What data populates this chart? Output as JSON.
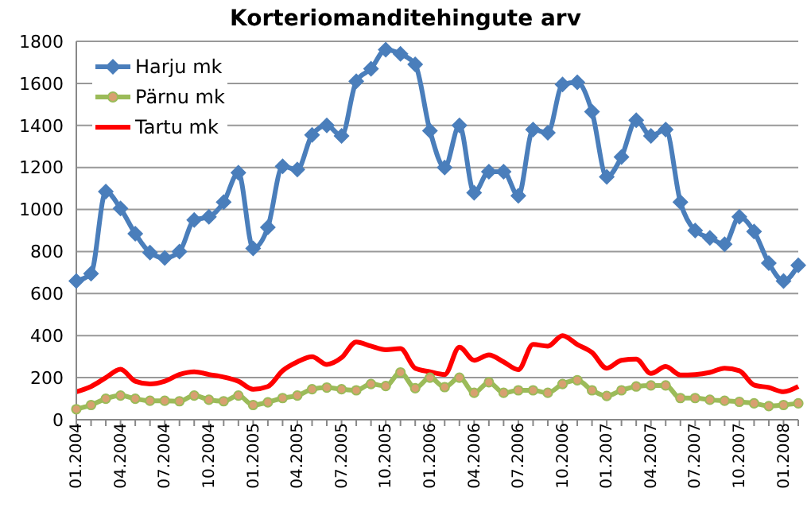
{
  "chart_data": {
    "type": "line",
    "title": "Korteriomanditehingute arv",
    "categories": [
      "01.2004",
      null,
      null,
      "04.2004",
      null,
      null,
      "07.2004",
      null,
      null,
      "10.2004",
      null,
      null,
      "01.2005",
      null,
      null,
      "04.2005",
      null,
      null,
      "07.2005",
      null,
      null,
      "10.2005",
      null,
      null,
      "01.2006",
      null,
      null,
      "04.2006",
      null,
      null,
      "07.2006",
      null,
      null,
      "10.2006",
      null,
      null,
      "01.2007",
      null,
      null,
      "04.2007",
      null,
      null,
      "07.2007",
      null,
      null,
      "10.2007",
      null,
      null,
      "01.2008",
      null
    ],
    "series": [
      {
        "name": "Harju mk",
        "color": "#4a7ebb",
        "marker": "diamond",
        "values": [
          660,
          695,
          1085,
          1005,
          885,
          795,
          770,
          800,
          950,
          965,
          1035,
          1175,
          815,
          915,
          1205,
          1190,
          1355,
          1400,
          1350,
          1610,
          1670,
          1760,
          1740,
          1690,
          1375,
          1200,
          1400,
          1080,
          1180,
          1180,
          1065,
          1380,
          1365,
          1595,
          1605,
          1465,
          1155,
          1250,
          1425,
          1350,
          1380,
          1035,
          900,
          865,
          835,
          965,
          895,
          745,
          660,
          735
        ]
      },
      {
        "name": "Pärnu mk",
        "color": "#9bbb59",
        "marker": "circle",
        "values": [
          50,
          70,
          100,
          115,
          100,
          90,
          90,
          88,
          115,
          95,
          88,
          115,
          70,
          83,
          103,
          115,
          145,
          153,
          145,
          140,
          170,
          160,
          225,
          150,
          200,
          155,
          200,
          128,
          178,
          128,
          140,
          140,
          128,
          170,
          188,
          140,
          113,
          140,
          158,
          163,
          163,
          103,
          103,
          95,
          90,
          85,
          78,
          65,
          70,
          78
        ]
      },
      {
        "name": "Tartu mk",
        "color": "#ff0000",
        "marker": "none",
        "values": [
          133,
          158,
          200,
          240,
          183,
          170,
          183,
          215,
          228,
          215,
          203,
          183,
          145,
          158,
          233,
          275,
          300,
          263,
          295,
          370,
          350,
          333,
          338,
          245,
          228,
          215,
          345,
          283,
          308,
          275,
          238,
          358,
          350,
          400,
          358,
          320,
          245,
          283,
          288,
          220,
          253,
          213,
          215,
          225,
          245,
          233,
          165,
          153,
          133,
          158
        ]
      }
    ],
    "ylim": [
      0,
      1800
    ],
    "yticks": [
      0,
      200,
      400,
      600,
      800,
      1000,
      1200,
      1400,
      1600,
      1800
    ],
    "grid": "y",
    "legend": "top left"
  }
}
